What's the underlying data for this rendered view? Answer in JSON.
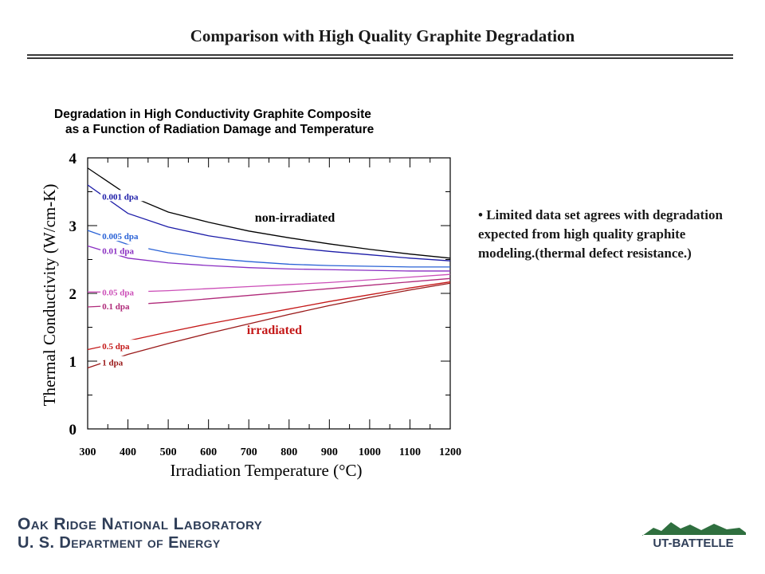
{
  "slide": {
    "title": "Comparison with High Quality Graphite Degradation",
    "bullet": "• Limited data set agrees with degradation expected from high quality graphite modeling.(thermal defect resistance.)",
    "footer_line1": "Oak Ridge National Laboratory",
    "footer_line2": "U. S. Department of Energy",
    "logo_text": "UT-BATTELLE"
  },
  "colors": {
    "non_irradiated": "#000000",
    "0.001_dpa": "#1c1ca8",
    "0.005_dpa": "#2a62d6",
    "0.01_dpa": "#8a2fc2",
    "0.05_dpa": "#cc4fb8",
    "0.1_dpa": "#b02a7a",
    "0.5_dpa": "#c41818",
    "1_dpa": "#9a1a1a",
    "annotation_non_irradiated": "#000000",
    "annotation_irradiated": "#c41818"
  },
  "chart_data": {
    "type": "line",
    "title": "Degradation in High Conductivity Graphite Composite",
    "subtitle": "as a Function of Radiation Damage and Temperature",
    "xlabel": "Irradiation Temperature (°C)",
    "ylabel": "Thermal Conductivity (W/cm-K)",
    "xlim": [
      300,
      1200
    ],
    "ylim": [
      0,
      4
    ],
    "xticks": [
      300,
      400,
      500,
      600,
      700,
      800,
      900,
      1000,
      1100,
      1200
    ],
    "yticks": [
      0,
      1,
      2,
      3,
      4
    ],
    "grid": false,
    "x": [
      300,
      400,
      500,
      600,
      700,
      800,
      900,
      1000,
      1100,
      1200
    ],
    "series": [
      {
        "name": "non-irradiated",
        "color_key": "non_irradiated",
        "values": [
          3.85,
          3.45,
          3.2,
          3.05,
          2.92,
          2.82,
          2.73,
          2.65,
          2.58,
          2.52
        ]
      },
      {
        "name": "0.001  dpa",
        "color_key": "0.001_dpa",
        "values": [
          3.6,
          3.18,
          2.98,
          2.85,
          2.76,
          2.68,
          2.62,
          2.57,
          2.52,
          2.48
        ]
      },
      {
        "name": "0.005  dpa",
        "color_key": "0.005_dpa",
        "values": [
          2.93,
          2.72,
          2.6,
          2.52,
          2.47,
          2.43,
          2.41,
          2.4,
          2.39,
          2.39
        ]
      },
      {
        "name": "0.01  dpa",
        "color_key": "0.01_dpa",
        "values": [
          2.7,
          2.52,
          2.45,
          2.41,
          2.38,
          2.36,
          2.35,
          2.34,
          2.33,
          2.33
        ]
      },
      {
        "name": "0.05  dpa",
        "color_key": "0.05_dpa",
        "values": [
          2.02,
          2.02,
          2.04,
          2.07,
          2.1,
          2.13,
          2.16,
          2.2,
          2.24,
          2.28
        ]
      },
      {
        "name": "0.1  dpa",
        "color_key": "0.1_dpa",
        "values": [
          1.8,
          1.83,
          1.87,
          1.92,
          1.97,
          2.02,
          2.07,
          2.12,
          2.17,
          2.22
        ]
      },
      {
        "name": "0.5  dpa",
        "color_key": "0.5_dpa",
        "values": [
          1.17,
          1.3,
          1.43,
          1.55,
          1.66,
          1.77,
          1.88,
          1.98,
          2.08,
          2.17
        ]
      },
      {
        "name": "1  dpa",
        "color_key": "1_dpa",
        "values": [
          0.9,
          1.1,
          1.26,
          1.41,
          1.55,
          1.69,
          1.82,
          1.94,
          2.05,
          2.15
        ]
      }
    ],
    "annotations": [
      {
        "text": "non-irradiated",
        "x": 715,
        "y": 3.06,
        "color_key": "annotation_non_irradiated"
      },
      {
        "text": "irradiated",
        "x": 695,
        "y": 1.4,
        "color_key": "annotation_irradiated"
      }
    ]
  }
}
